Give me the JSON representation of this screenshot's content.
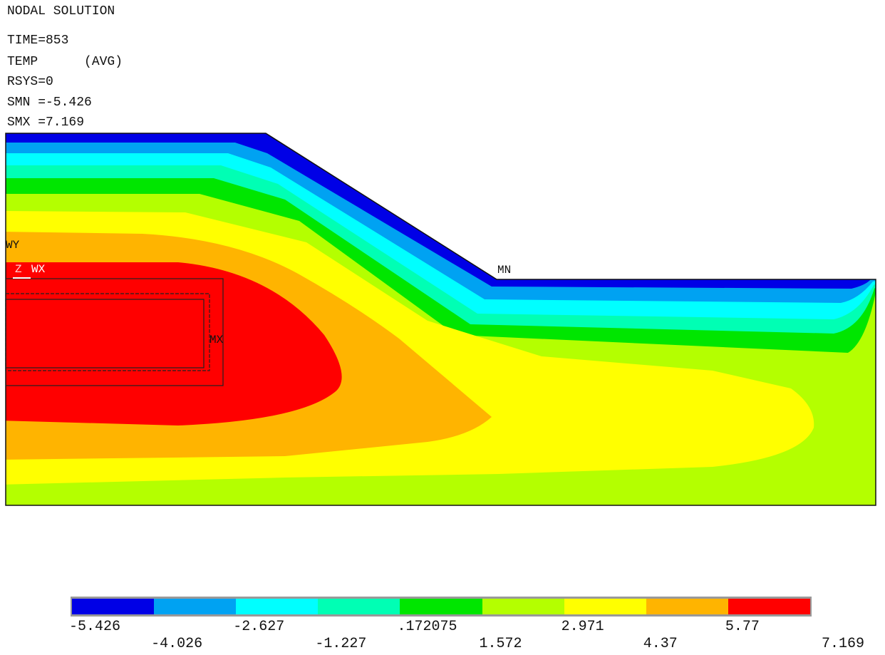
{
  "header": {
    "title": "NODAL SOLUTION",
    "time": "TIME=853",
    "quantity": "TEMP      (AVG)",
    "rsys": "RSYS=0",
    "smn": "SMN =-5.426",
    "smx": "SMX =7.169"
  },
  "markers": {
    "wy": "WY",
    "z": "Z",
    "wx": "WX",
    "mn": "MN",
    "mx": "MX"
  },
  "legend": {
    "colors": [
      "#0000e6",
      "#00a2f2",
      "#00ffff",
      "#00ffb4",
      "#00e600",
      "#b4ff00",
      "#ffff00",
      "#ffb400",
      "#ff0000"
    ],
    "labels_top": [
      "-5.426",
      "-2.627",
      ".172075",
      "2.971",
      "5.77"
    ],
    "labels_bottom": [
      "-4.026",
      "-1.227",
      "1.572",
      "4.37",
      "7.169"
    ]
  }
}
